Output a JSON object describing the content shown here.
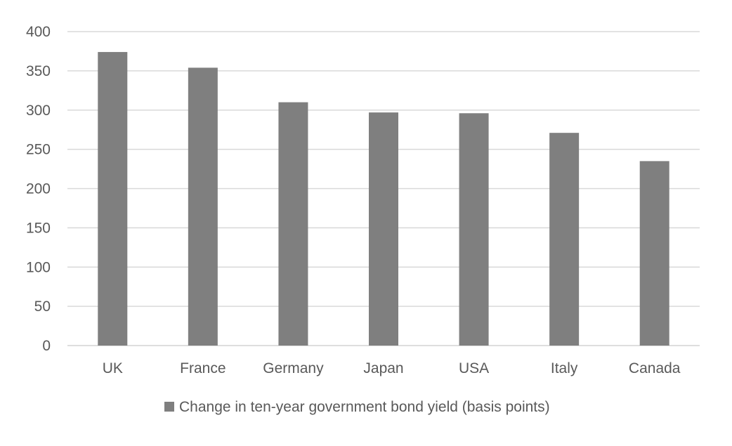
{
  "chart_data": {
    "type": "bar",
    "title": "",
    "xlabel": "",
    "ylabel": "",
    "categories": [
      "UK",
      "France",
      "Germany",
      "Japan",
      "USA",
      "Italy",
      "Canada"
    ],
    "series": [
      {
        "name": "Change in ten-year government bond yield (basis points)",
        "values": [
          374,
          354,
          310,
          297,
          296,
          271,
          235
        ],
        "color": "#7f7f7f"
      }
    ],
    "ylim": [
      0,
      400
    ],
    "yticks": [
      "0",
      "50",
      "100",
      "150",
      "200",
      "250",
      "300",
      "350",
      "400"
    ],
    "grid": true,
    "legend": "bottom",
    "colors": {
      "bar": "#7f7f7f",
      "grid": "#d9d9d9",
      "text": "#595959"
    }
  }
}
